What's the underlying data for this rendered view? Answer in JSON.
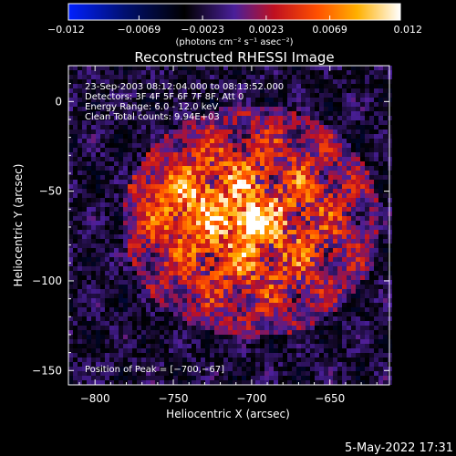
{
  "chart_data": {
    "type": "heatmap",
    "title": "Reconstructed RHESSI Image",
    "xlabel": "Heliocentric X (arcsec)",
    "ylabel": "Heliocentric Y (arcsec)",
    "colorbar": {
      "tick_labels": [
        "−0.012",
        "−0.0069",
        "−0.0023",
        "0.0023",
        "0.0069",
        "0.012"
      ],
      "ticks": [
        -0.012,
        -0.0069,
        -0.0023,
        0.0023,
        0.0069,
        0.012
      ],
      "range": [
        -0.012,
        0.012
      ],
      "unit_label": "(photons cm⁻² s⁻¹ asec⁻²)",
      "colormap": "blue-black-purple-red-yellow-white"
    },
    "x_ticks": [
      -800,
      -750,
      -700,
      -650
    ],
    "x_tick_labels": [
      "−800",
      "−750",
      "−700",
      "−650"
    ],
    "y_ticks": [
      0,
      -50,
      -100,
      -150
    ],
    "y_tick_labels": [
      "0",
      "−50",
      "−100",
      "−150"
    ],
    "xlim": [
      -817,
      -612
    ],
    "ylim": [
      -158,
      20
    ],
    "peak": {
      "x": -700,
      "y": -67,
      "value": 0.012
    },
    "info_lines": [
      "23-Sep-2003 08:12:04.000 to 08:13:52.000",
      "Detectors: 3F 4F 5F 6F 7F 8F, Att 0",
      "Energy Range: 6.0 - 12.0 keV",
      "Clean    Total counts: 9.94E+03"
    ],
    "peak_label": "Position of Peak = [−700,−67]"
  },
  "footer": {
    "timestamp": "5-May-2022 17:31"
  }
}
